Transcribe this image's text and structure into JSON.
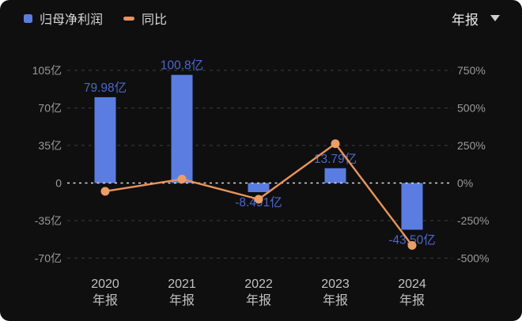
{
  "header": {
    "legend": [
      {
        "label": "归母净利润",
        "swatch": "bar-swatch",
        "color": "#5b7de1"
      },
      {
        "label": "同比",
        "swatch": "line-swatch",
        "color": "#e8955c"
      }
    ],
    "period_selector": {
      "value": "年报",
      "icon": "caret-down-icon"
    }
  },
  "chart_data": {
    "type": "bar",
    "combo": "bar+line dual-axis",
    "title": "",
    "categories": [
      {
        "year": "2020",
        "period": "年报"
      },
      {
        "year": "2021",
        "period": "年报"
      },
      {
        "year": "2022",
        "period": "年报"
      },
      {
        "year": "2023",
        "period": "年报"
      },
      {
        "year": "2024",
        "period": "年报"
      }
    ],
    "series": [
      {
        "name": "归母净利润",
        "type": "bar",
        "axis": "left",
        "unit": "亿",
        "color": "#5b7de1",
        "label_color": "#4a68c9",
        "values": [
          79.98,
          100.8,
          -8.491,
          13.79,
          -43.5
        ],
        "labels": [
          "79.98亿",
          "100.8亿",
          "-8.491亿",
          "13.79亿",
          "-43.50亿"
        ]
      },
      {
        "name": "同比",
        "type": "line",
        "axis": "right",
        "unit": "%",
        "color": "#e8955c",
        "marker_color": "#ec9e66",
        "yoy_percent_estimated": [
          -55,
          26,
          -108,
          262,
          -415
        ]
      }
    ],
    "left_axis": {
      "unit": "亿",
      "tick_labels": [
        "105亿",
        "70亿",
        "35亿",
        "0",
        "-35亿",
        "-70亿"
      ],
      "tick_values": [
        105,
        70,
        35,
        0,
        -35,
        -70
      ],
      "range": [
        -87.5,
        122.5
      ]
    },
    "right_axis": {
      "unit": "%",
      "tick_labels": [
        "750%",
        "500%",
        "250%",
        "0%",
        "-250%",
        "-500%"
      ],
      "tick_values": [
        750,
        500,
        250,
        0,
        -250,
        -500
      ],
      "range": [
        -625,
        875
      ]
    },
    "grid": {
      "style": "dashed",
      "zero_line_highlighted": true,
      "legend_position": "top-left"
    }
  },
  "colors": {
    "background": "#0f0f10",
    "bar": "#5b7de1",
    "line": "#e8955c",
    "value_label": "#4a68c9",
    "axis_text": "#9a9a9a",
    "category_text": "#c2c2c2",
    "grid": "#3c3c3c",
    "zero_line": "#dcdcdc"
  }
}
